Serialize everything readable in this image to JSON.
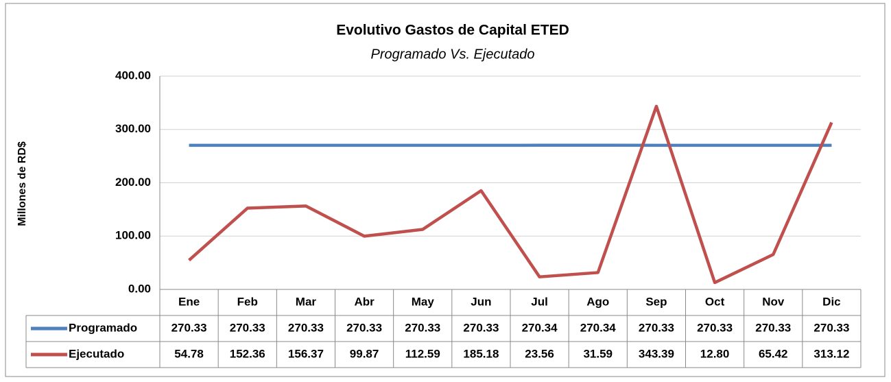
{
  "chart_data": {
    "type": "line",
    "title": "Evolutivo Gastos de Capital ETED",
    "subtitle": "Programado Vs. Ejecutado",
    "y_label": "Millones de RD$",
    "categories": [
      "Ene",
      "Feb",
      "Mar",
      "Abr",
      "May",
      "Jun",
      "Jul",
      "Ago",
      "Sep",
      "Oct",
      "Nov",
      "Dic"
    ],
    "series": [
      {
        "name": "Programado",
        "color": "#4f81bd",
        "values": [
          270.33,
          270.33,
          270.33,
          270.33,
          270.33,
          270.33,
          270.34,
          270.34,
          270.33,
          270.33,
          270.33,
          270.33
        ]
      },
      {
        "name": "Ejecutado",
        "color": "#c0504d",
        "values": [
          54.78,
          152.36,
          156.37,
          99.87,
          112.59,
          185.18,
          23.56,
          31.59,
          343.39,
          12.8,
          65.42,
          313.12
        ],
        "value_labels": [
          "54.78",
          "152.36",
          "156.37",
          "99.87",
          "112.59",
          "185.18",
          "23.56",
          "31.59",
          "343.39",
          "12.80",
          "65.42",
          "313.12"
        ]
      }
    ],
    "ylim": [
      0,
      400
    ],
    "yticks": [
      {
        "value": 0,
        "label": "0.00"
      },
      {
        "value": 100,
        "label": "100.00"
      },
      {
        "value": 200,
        "label": "200.00"
      },
      {
        "value": 300,
        "label": "300.00"
      },
      {
        "value": 400,
        "label": "400.00"
      }
    ],
    "grid": true,
    "data_table": true
  }
}
